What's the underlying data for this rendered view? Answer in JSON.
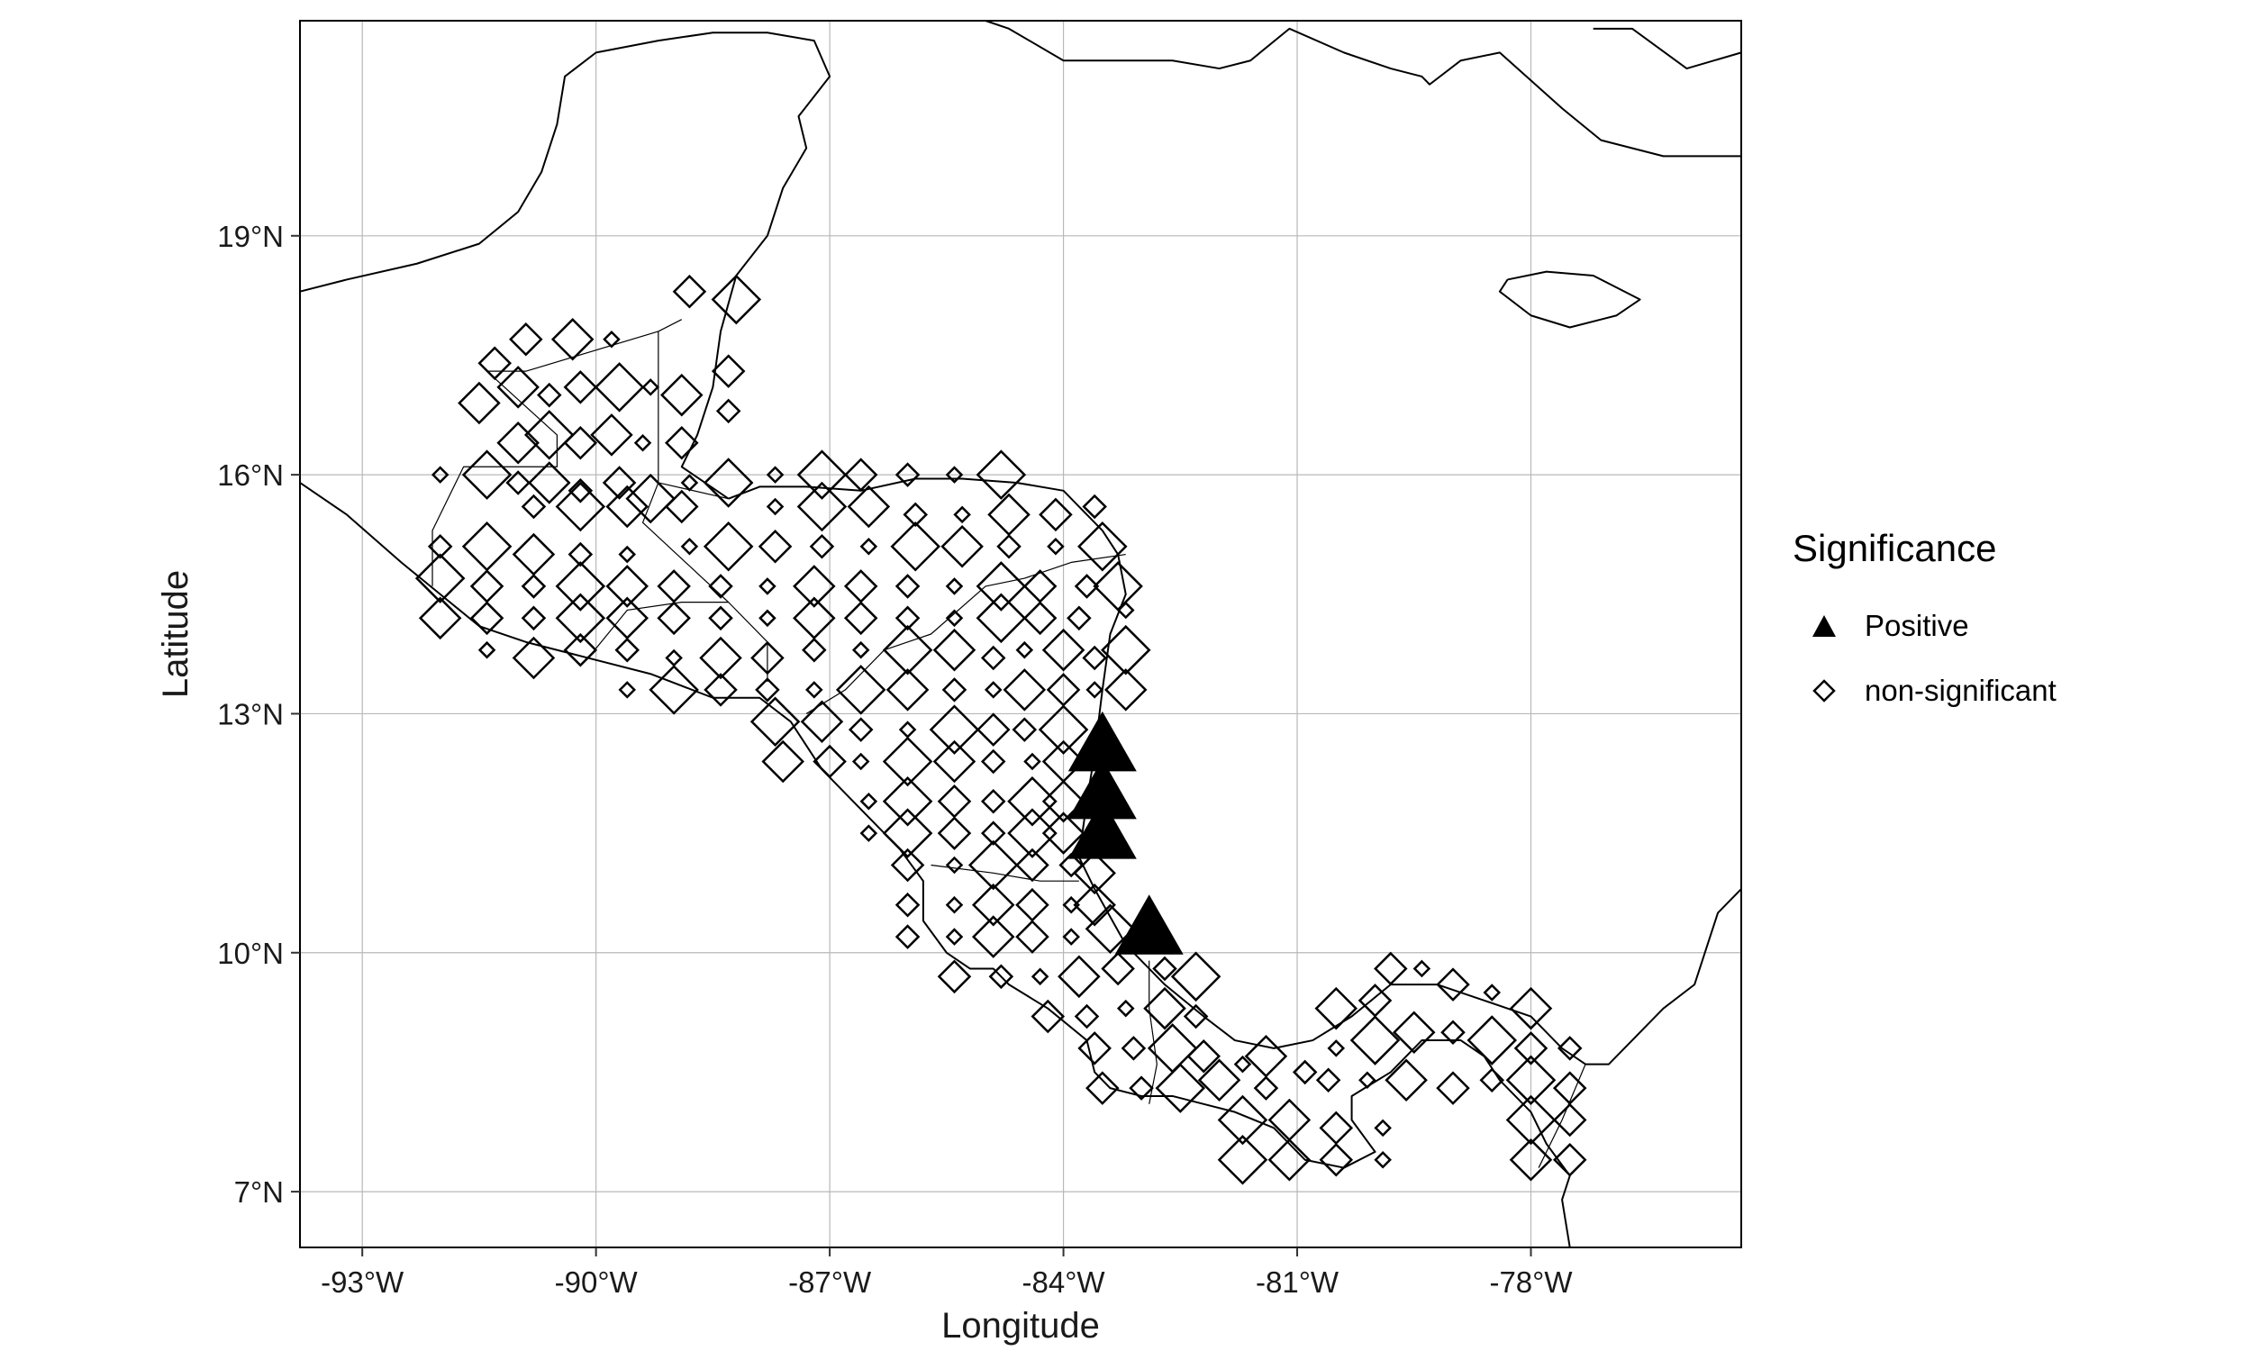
{
  "map": {
    "xlabel": "Longitude",
    "ylabel": "Latitude",
    "xlim": [
      -93.8,
      -75.3
    ],
    "ylim": [
      6.3,
      21.7
    ],
    "x_ticks": [
      -93,
      -90,
      -87,
      -84,
      -81,
      -78
    ],
    "x_tick_labels": [
      "-93°W",
      "-90°W",
      "-87°W",
      "-84°W",
      "-81°W",
      "-78°W"
    ],
    "y_ticks": [
      7,
      10,
      13,
      16,
      19
    ],
    "y_tick_labels": [
      "7°N",
      "10°N",
      "13°N",
      "16°N",
      "19°N"
    ],
    "grid": true
  },
  "legend": {
    "title": "Significance",
    "items": [
      {
        "label": "Positive",
        "shape": "triangle-filled",
        "color": "#000000"
      },
      {
        "label": "non-significant",
        "shape": "diamond-open",
        "color": "#000000"
      }
    ]
  },
  "chart_data": {
    "type": "scatter",
    "series": [
      {
        "name": "Positive",
        "shape": "triangle",
        "points": [
          [
            -83.5,
            12.6
          ],
          [
            -83.5,
            12.0
          ],
          [
            -83.5,
            11.5
          ],
          [
            -82.9,
            10.3
          ]
        ]
      },
      {
        "name": "non-significant",
        "shape": "diamond",
        "points": [
          [
            -91.3,
            17.4
          ],
          [
            -90.9,
            17.7
          ],
          [
            -90.3,
            17.7
          ],
          [
            -89.8,
            17.7
          ],
          [
            -88.8,
            18.3
          ],
          [
            -88.2,
            18.2
          ],
          [
            -91.5,
            16.9
          ],
          [
            -91.0,
            17.1
          ],
          [
            -90.6,
            17.0
          ],
          [
            -90.2,
            17.1
          ],
          [
            -89.7,
            17.1
          ],
          [
            -89.3,
            17.1
          ],
          [
            -88.9,
            17.0
          ],
          [
            -88.3,
            17.3
          ],
          [
            -91.0,
            16.4
          ],
          [
            -90.6,
            16.5
          ],
          [
            -90.2,
            16.4
          ],
          [
            -89.8,
            16.5
          ],
          [
            -89.4,
            16.4
          ],
          [
            -88.9,
            16.4
          ],
          [
            -88.3,
            16.8
          ],
          [
            -91.0,
            15.9
          ],
          [
            -90.6,
            15.9
          ],
          [
            -90.2,
            15.8
          ],
          [
            -89.7,
            15.9
          ],
          [
            -89.3,
            15.7
          ],
          [
            -88.8,
            15.9
          ],
          [
            -88.3,
            15.9
          ],
          [
            -92.0,
            16.0
          ],
          [
            -91.4,
            16.0
          ],
          [
            -90.8,
            15.6
          ],
          [
            -90.2,
            15.6
          ],
          [
            -89.6,
            15.6
          ],
          [
            -88.9,
            15.6
          ],
          [
            -87.7,
            16.0
          ],
          [
            -87.1,
            16.0
          ],
          [
            -86.6,
            16.0
          ],
          [
            -86.0,
            16.0
          ],
          [
            -85.4,
            16.0
          ],
          [
            -84.8,
            16.0
          ],
          [
            -87.7,
            15.6
          ],
          [
            -87.1,
            15.6
          ],
          [
            -86.5,
            15.6
          ],
          [
            -85.9,
            15.5
          ],
          [
            -85.3,
            15.5
          ],
          [
            -84.7,
            15.5
          ],
          [
            -84.1,
            15.5
          ],
          [
            -83.6,
            15.6
          ],
          [
            -88.8,
            15.1
          ],
          [
            -88.3,
            15.1
          ],
          [
            -87.7,
            15.1
          ],
          [
            -87.1,
            15.1
          ],
          [
            -86.5,
            15.1
          ],
          [
            -85.9,
            15.1
          ],
          [
            -85.3,
            15.1
          ],
          [
            -84.7,
            15.1
          ],
          [
            -84.1,
            15.1
          ],
          [
            -83.5,
            15.1
          ],
          [
            -92.0,
            15.1
          ],
          [
            -91.4,
            15.1
          ],
          [
            -90.8,
            15.0
          ],
          [
            -90.2,
            15.0
          ],
          [
            -89.6,
            15.0
          ],
          [
            -92.0,
            14.7
          ],
          [
            -91.4,
            14.6
          ],
          [
            -90.8,
            14.6
          ],
          [
            -90.2,
            14.6
          ],
          [
            -89.6,
            14.6
          ],
          [
            -89.0,
            14.6
          ],
          [
            -88.4,
            14.6
          ],
          [
            -87.8,
            14.6
          ],
          [
            -87.2,
            14.6
          ],
          [
            -86.6,
            14.6
          ],
          [
            -86.0,
            14.6
          ],
          [
            -85.4,
            14.6
          ],
          [
            -84.8,
            14.6
          ],
          [
            -84.3,
            14.6
          ],
          [
            -83.7,
            14.6
          ],
          [
            -83.3,
            14.6
          ],
          [
            -92.0,
            14.2
          ],
          [
            -91.4,
            14.2
          ],
          [
            -90.8,
            14.2
          ],
          [
            -90.2,
            14.2
          ],
          [
            -89.6,
            14.2
          ],
          [
            -89.0,
            14.2
          ],
          [
            -88.4,
            14.2
          ],
          [
            -87.8,
            14.2
          ],
          [
            -87.2,
            14.2
          ],
          [
            -86.6,
            14.2
          ],
          [
            -86.0,
            14.2
          ],
          [
            -85.4,
            14.2
          ],
          [
            -84.8,
            14.2
          ],
          [
            -84.3,
            14.2
          ],
          [
            -83.8,
            14.2
          ],
          [
            -83.2,
            14.3
          ],
          [
            -91.4,
            13.8
          ],
          [
            -90.8,
            13.7
          ],
          [
            -90.2,
            13.8
          ],
          [
            -89.6,
            13.8
          ],
          [
            -89.0,
            13.7
          ],
          [
            -88.4,
            13.7
          ],
          [
            -87.8,
            13.7
          ],
          [
            -87.2,
            13.8
          ],
          [
            -86.6,
            13.8
          ],
          [
            -86.0,
            13.8
          ],
          [
            -85.4,
            13.8
          ],
          [
            -84.9,
            13.7
          ],
          [
            -84.5,
            13.8
          ],
          [
            -84.0,
            13.8
          ],
          [
            -83.6,
            13.7
          ],
          [
            -83.2,
            13.8
          ],
          [
            -89.6,
            13.3
          ],
          [
            -89.0,
            13.3
          ],
          [
            -88.4,
            13.3
          ],
          [
            -87.8,
            13.3
          ],
          [
            -87.2,
            13.3
          ],
          [
            -86.6,
            13.3
          ],
          [
            -86.0,
            13.3
          ],
          [
            -85.4,
            13.3
          ],
          [
            -84.9,
            13.3
          ],
          [
            -84.5,
            13.3
          ],
          [
            -84.0,
            13.3
          ],
          [
            -83.6,
            13.3
          ],
          [
            -83.2,
            13.3
          ],
          [
            -87.7,
            12.9
          ],
          [
            -87.1,
            12.9
          ],
          [
            -86.6,
            12.8
          ],
          [
            -86.0,
            12.8
          ],
          [
            -85.4,
            12.8
          ],
          [
            -84.9,
            12.8
          ],
          [
            -84.5,
            12.8
          ],
          [
            -84.0,
            12.8
          ],
          [
            -87.6,
            12.4
          ],
          [
            -87.0,
            12.4
          ],
          [
            -86.6,
            12.4
          ],
          [
            -86.0,
            12.4
          ],
          [
            -85.4,
            12.4
          ],
          [
            -84.9,
            12.4
          ],
          [
            -84.4,
            12.4
          ],
          [
            -84.0,
            12.4
          ],
          [
            -86.5,
            11.9
          ],
          [
            -86.0,
            11.9
          ],
          [
            -85.4,
            11.9
          ],
          [
            -84.9,
            11.9
          ],
          [
            -84.4,
            11.9
          ],
          [
            -84.0,
            11.9
          ],
          [
            -86.5,
            11.5
          ],
          [
            -86.0,
            11.5
          ],
          [
            -85.4,
            11.5
          ],
          [
            -84.9,
            11.5
          ],
          [
            -84.4,
            11.5
          ],
          [
            -84.0,
            11.5
          ],
          [
            -86.0,
            11.1
          ],
          [
            -85.4,
            11.1
          ],
          [
            -84.9,
            11.1
          ],
          [
            -84.4,
            11.1
          ],
          [
            -83.9,
            11.1
          ],
          [
            -83.6,
            11.0
          ],
          [
            -86.0,
            10.6
          ],
          [
            -85.4,
            10.6
          ],
          [
            -84.9,
            10.6
          ],
          [
            -84.4,
            10.6
          ],
          [
            -83.9,
            10.6
          ],
          [
            -83.6,
            10.6
          ],
          [
            -86.0,
            10.2
          ],
          [
            -85.4,
            10.2
          ],
          [
            -84.9,
            10.2
          ],
          [
            -84.4,
            10.2
          ],
          [
            -83.9,
            10.2
          ],
          [
            -83.4,
            10.3
          ],
          [
            -85.4,
            9.7
          ],
          [
            -84.8,
            9.7
          ],
          [
            -84.3,
            9.7
          ],
          [
            -83.8,
            9.7
          ],
          [
            -83.3,
            9.8
          ],
          [
            -82.7,
            9.8
          ],
          [
            -82.3,
            9.7
          ],
          [
            -84.2,
            9.2
          ],
          [
            -83.7,
            9.2
          ],
          [
            -83.2,
            9.3
          ],
          [
            -82.7,
            9.3
          ],
          [
            -82.3,
            9.2
          ],
          [
            -83.6,
            8.8
          ],
          [
            -83.1,
            8.8
          ],
          [
            -82.6,
            8.8
          ],
          [
            -82.2,
            8.7
          ],
          [
            -81.7,
            8.6
          ],
          [
            -81.4,
            8.7
          ],
          [
            -83.5,
            8.3
          ],
          [
            -83.0,
            8.3
          ],
          [
            -82.5,
            8.3
          ],
          [
            -82.0,
            8.4
          ],
          [
            -81.4,
            8.3
          ],
          [
            -80.9,
            8.5
          ],
          [
            -80.5,
            9.3
          ],
          [
            -80.0,
            9.4
          ],
          [
            -79.8,
            9.8
          ],
          [
            -79.4,
            9.8
          ],
          [
            -79.0,
            9.6
          ],
          [
            -78.5,
            9.5
          ],
          [
            -78.0,
            9.3
          ],
          [
            -80.5,
            8.8
          ],
          [
            -80.0,
            8.9
          ],
          [
            -79.5,
            9.0
          ],
          [
            -79.0,
            9.0
          ],
          [
            -78.5,
            8.9
          ],
          [
            -78.0,
            8.8
          ],
          [
            -77.5,
            8.8
          ],
          [
            -80.6,
            8.4
          ],
          [
            -80.1,
            8.4
          ],
          [
            -79.6,
            8.4
          ],
          [
            -79.0,
            8.3
          ],
          [
            -78.5,
            8.4
          ],
          [
            -78.0,
            8.4
          ],
          [
            -77.5,
            8.3
          ],
          [
            -81.7,
            7.9
          ],
          [
            -81.1,
            7.9
          ],
          [
            -80.5,
            7.8
          ],
          [
            -79.9,
            7.8
          ],
          [
            -78.0,
            7.9
          ],
          [
            -77.5,
            7.9
          ],
          [
            -81.7,
            7.4
          ],
          [
            -81.1,
            7.4
          ],
          [
            -80.5,
            7.4
          ],
          [
            -79.9,
            7.4
          ],
          [
            -78.0,
            7.4
          ],
          [
            -77.5,
            7.4
          ]
        ]
      }
    ]
  }
}
